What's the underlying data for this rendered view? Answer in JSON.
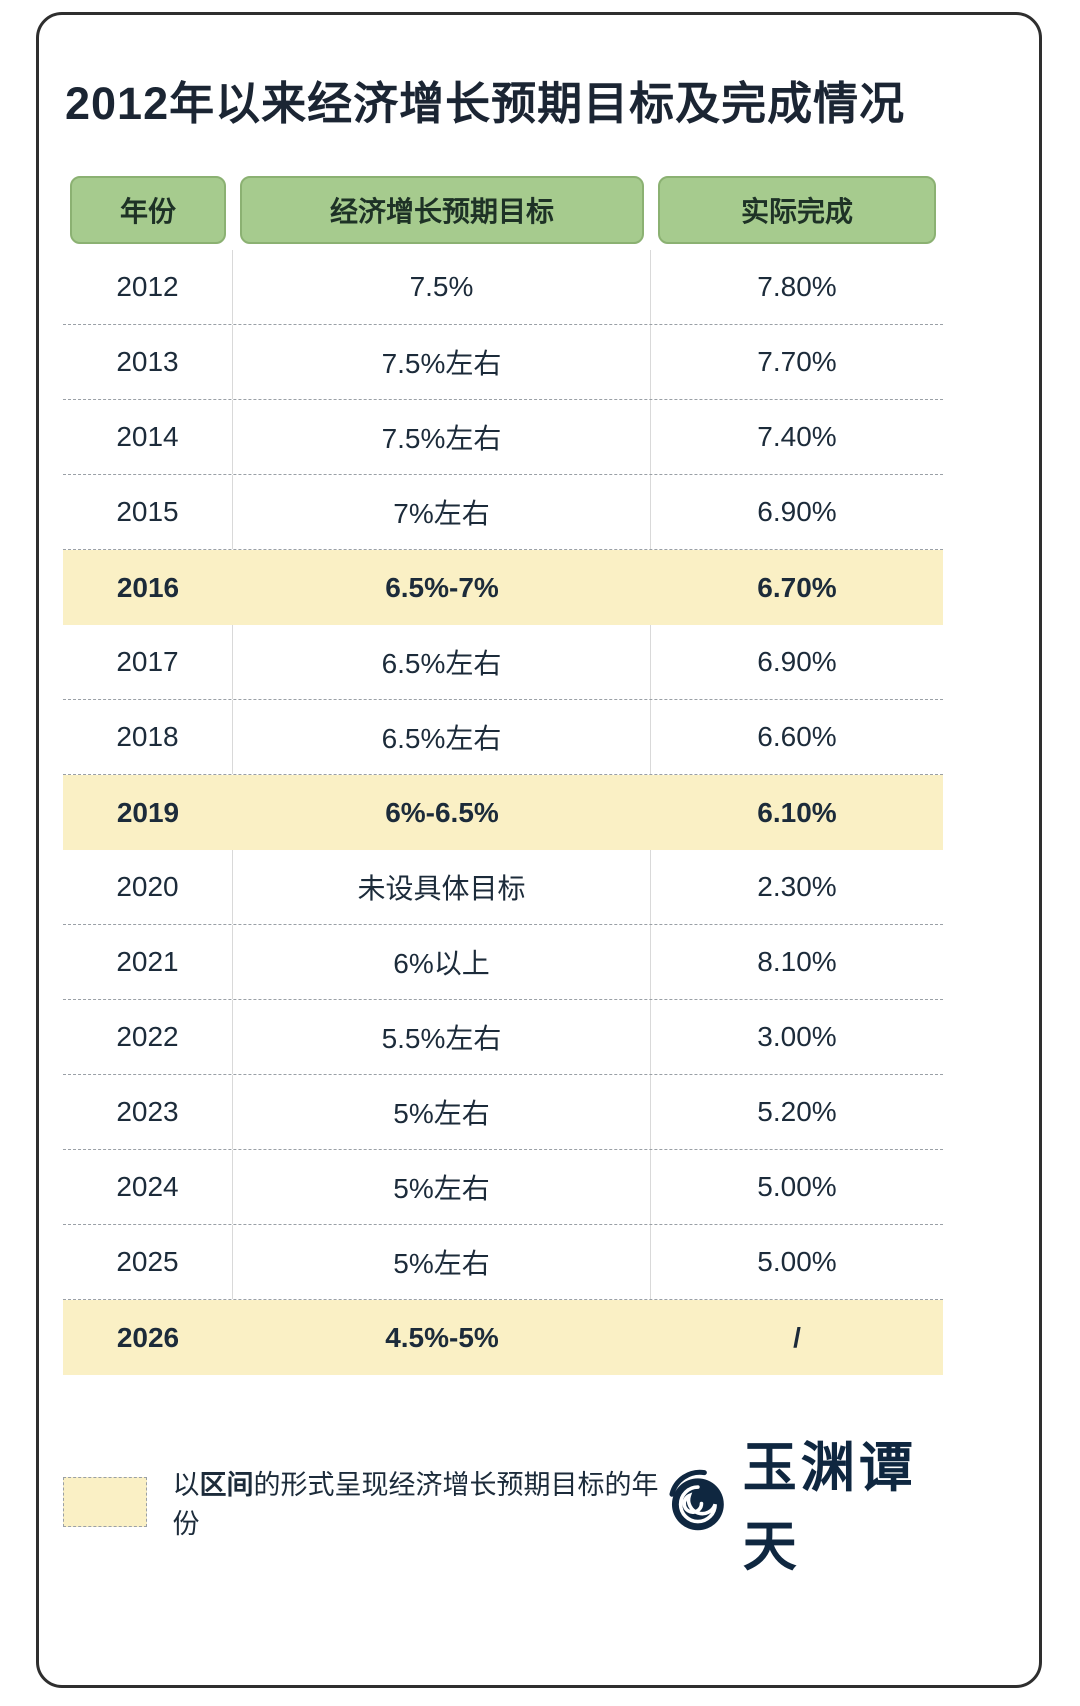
{
  "title": "2012年以来经济增长预期目标及完成情况",
  "table": {
    "headers": [
      {
        "label": "年份"
      },
      {
        "label": "经济增长预期目标"
      },
      {
        "label": "实际完成"
      }
    ],
    "rows": [
      {
        "year": "2012",
        "target": "7.5%",
        "actual": "7.80%",
        "highlight": false
      },
      {
        "year": "2013",
        "target": "7.5%左右",
        "actual": "7.70%",
        "highlight": false
      },
      {
        "year": "2014",
        "target": "7.5%左右",
        "actual": "7.40%",
        "highlight": false
      },
      {
        "year": "2015",
        "target": "7%左右",
        "actual": "6.90%",
        "highlight": false
      },
      {
        "year": "2016",
        "target": "6.5%-7%",
        "actual": "6.70%",
        "highlight": true
      },
      {
        "year": "2017",
        "target": "6.5%左右",
        "actual": "6.90%",
        "highlight": false
      },
      {
        "year": "2018",
        "target": "6.5%左右",
        "actual": "6.60%",
        "highlight": false
      },
      {
        "year": "2019",
        "target": "6%-6.5%",
        "actual": "6.10%",
        "highlight": true
      },
      {
        "year": "2020",
        "target": "未设具体目标",
        "actual": "2.30%",
        "highlight": false
      },
      {
        "year": "2021",
        "target": "6%以上",
        "actual": "8.10%",
        "highlight": false
      },
      {
        "year": "2022",
        "target": "5.5%左右",
        "actual": "3.00%",
        "highlight": false
      },
      {
        "year": "2023",
        "target": "5%左右",
        "actual": "5.20%",
        "highlight": false
      },
      {
        "year": "2024",
        "target": "5%左右",
        "actual": "5.00%",
        "highlight": false
      },
      {
        "year": "2025",
        "target": "5%左右",
        "actual": "5.00%",
        "highlight": false
      },
      {
        "year": "2026",
        "target": "4.5%-5%",
        "actual": "/",
        "highlight": true
      }
    ]
  },
  "legend": {
    "prefix": "以",
    "range_term": "区间",
    "suffix": "的形式呈现经济增长预期目标的年份"
  },
  "logo": {
    "text": "玉渊谭天"
  },
  "colors": {
    "header_green": "#a6cb8e",
    "highlight_yellow": "#faf0c5",
    "text_dark": "#1c2b3a",
    "card_border": "#2e2e2e"
  },
  "chart_data": {
    "type": "table",
    "title": "2012年以来经济增长预期目标及完成情况",
    "columns": [
      "年份",
      "经济增长预期目标",
      "实际完成"
    ],
    "rows": [
      [
        "2012",
        "7.5%",
        "7.80%"
      ],
      [
        "2013",
        "7.5%左右",
        "7.70%"
      ],
      [
        "2014",
        "7.5%左右",
        "7.40%"
      ],
      [
        "2015",
        "7%左右",
        "6.90%"
      ],
      [
        "2016",
        "6.5%-7%",
        "6.70%"
      ],
      [
        "2017",
        "6.5%左右",
        "6.90%"
      ],
      [
        "2018",
        "6.5%左右",
        "6.60%"
      ],
      [
        "2019",
        "6%-6.5%",
        "6.10%"
      ],
      [
        "2020",
        "未设具体目标",
        "2.30%"
      ],
      [
        "2021",
        "6%以上",
        "8.10%"
      ],
      [
        "2022",
        "5.5%左右",
        "3.00%"
      ],
      [
        "2023",
        "5%左右",
        "5.20%"
      ],
      [
        "2024",
        "5%左右",
        "5.00%"
      ],
      [
        "2025",
        "5%左右",
        "5.00%"
      ],
      [
        "2026",
        "4.5%-5%",
        "/"
      ]
    ],
    "highlighted_years": [
      "2016",
      "2019",
      "2026"
    ],
    "highlight_note": "以区间的形式呈现经济增长预期目标的年份"
  }
}
